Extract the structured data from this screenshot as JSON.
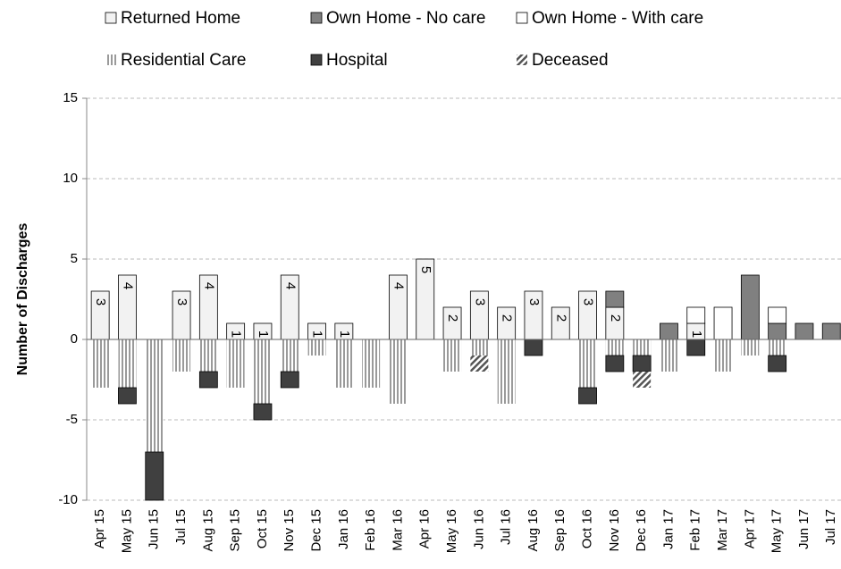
{
  "chart_data": {
    "type": "bar",
    "y_label": "Number of Discharges",
    "categories": [
      "Apr 15",
      "May 15",
      "Jun 15",
      "Jul 15",
      "Aug 15",
      "Sep 15",
      "Oct 15",
      "Nov 15",
      "Dec 15",
      "Jan 16",
      "Feb 16",
      "Mar 16",
      "Apr 16",
      "May 16",
      "Jun 16",
      "Jul 16",
      "Aug 16",
      "Sep 16",
      "Oct 16",
      "Nov 16",
      "Dec 16",
      "Jan 17",
      "Feb 17",
      "Mar 17",
      "Apr 17",
      "May 17",
      "Jun 17",
      "Jul 17"
    ],
    "series": [
      {
        "name": "Returned Home",
        "color": "#f2f2f2",
        "pattern": "solid",
        "data_labels": true,
        "values": [
          3,
          4,
          0,
          3,
          4,
          1,
          1,
          4,
          1,
          1,
          0,
          4,
          5,
          2,
          3,
          2,
          3,
          2,
          3,
          2,
          0,
          0,
          1,
          0,
          0,
          0,
          0,
          0
        ]
      },
      {
        "name": "Own Home - No care",
        "color": "#808080",
        "pattern": "solid",
        "values": [
          0,
          0,
          0,
          0,
          0,
          0,
          0,
          0,
          0,
          0,
          0,
          0,
          0,
          0,
          0,
          0,
          0,
          0,
          0,
          1,
          0,
          1,
          0,
          0,
          4,
          1,
          1,
          1
        ]
      },
      {
        "name": "Own Home - With care",
        "color": "#ffffff",
        "pattern": "solid",
        "values": [
          0,
          0,
          0,
          0,
          0,
          0,
          0,
          0,
          0,
          0,
          0,
          0,
          0,
          0,
          0,
          0,
          0,
          0,
          0,
          0,
          0,
          0,
          1,
          2,
          0,
          1,
          0,
          0
        ]
      },
      {
        "name": "Residential Care",
        "color": "#9a9a9a",
        "pattern": "vstripe",
        "values": [
          -3,
          -3,
          -7,
          -2,
          -2,
          -3,
          -4,
          -2,
          -1,
          -3,
          -3,
          -4,
          0,
          -2,
          -1,
          -4,
          0,
          0,
          -3,
          -1,
          -1,
          -2,
          0,
          -2,
          -1,
          -1,
          0,
          0
        ]
      },
      {
        "name": "Hospital",
        "color": "#404040",
        "pattern": "solid",
        "values": [
          0,
          -1,
          -3,
          0,
          -1,
          0,
          -1,
          -1,
          0,
          0,
          0,
          0,
          0,
          0,
          0,
          0,
          -1,
          0,
          -1,
          -1,
          -1,
          0,
          -1,
          0,
          0,
          -1,
          0,
          0
        ]
      },
      {
        "name": "Deceased",
        "color": "#555555",
        "pattern": "hatch",
        "values": [
          0,
          0,
          0,
          0,
          0,
          0,
          0,
          0,
          0,
          0,
          0,
          0,
          0,
          0,
          -1,
          0,
          0,
          0,
          0,
          0,
          -1,
          0,
          0,
          0,
          0,
          0,
          0,
          0
        ]
      }
    ],
    "ylim": [
      -10,
      15
    ],
    "yticks": [
      -10,
      -5,
      0,
      5,
      10,
      15
    ],
    "grid": true,
    "legend": "top"
  }
}
